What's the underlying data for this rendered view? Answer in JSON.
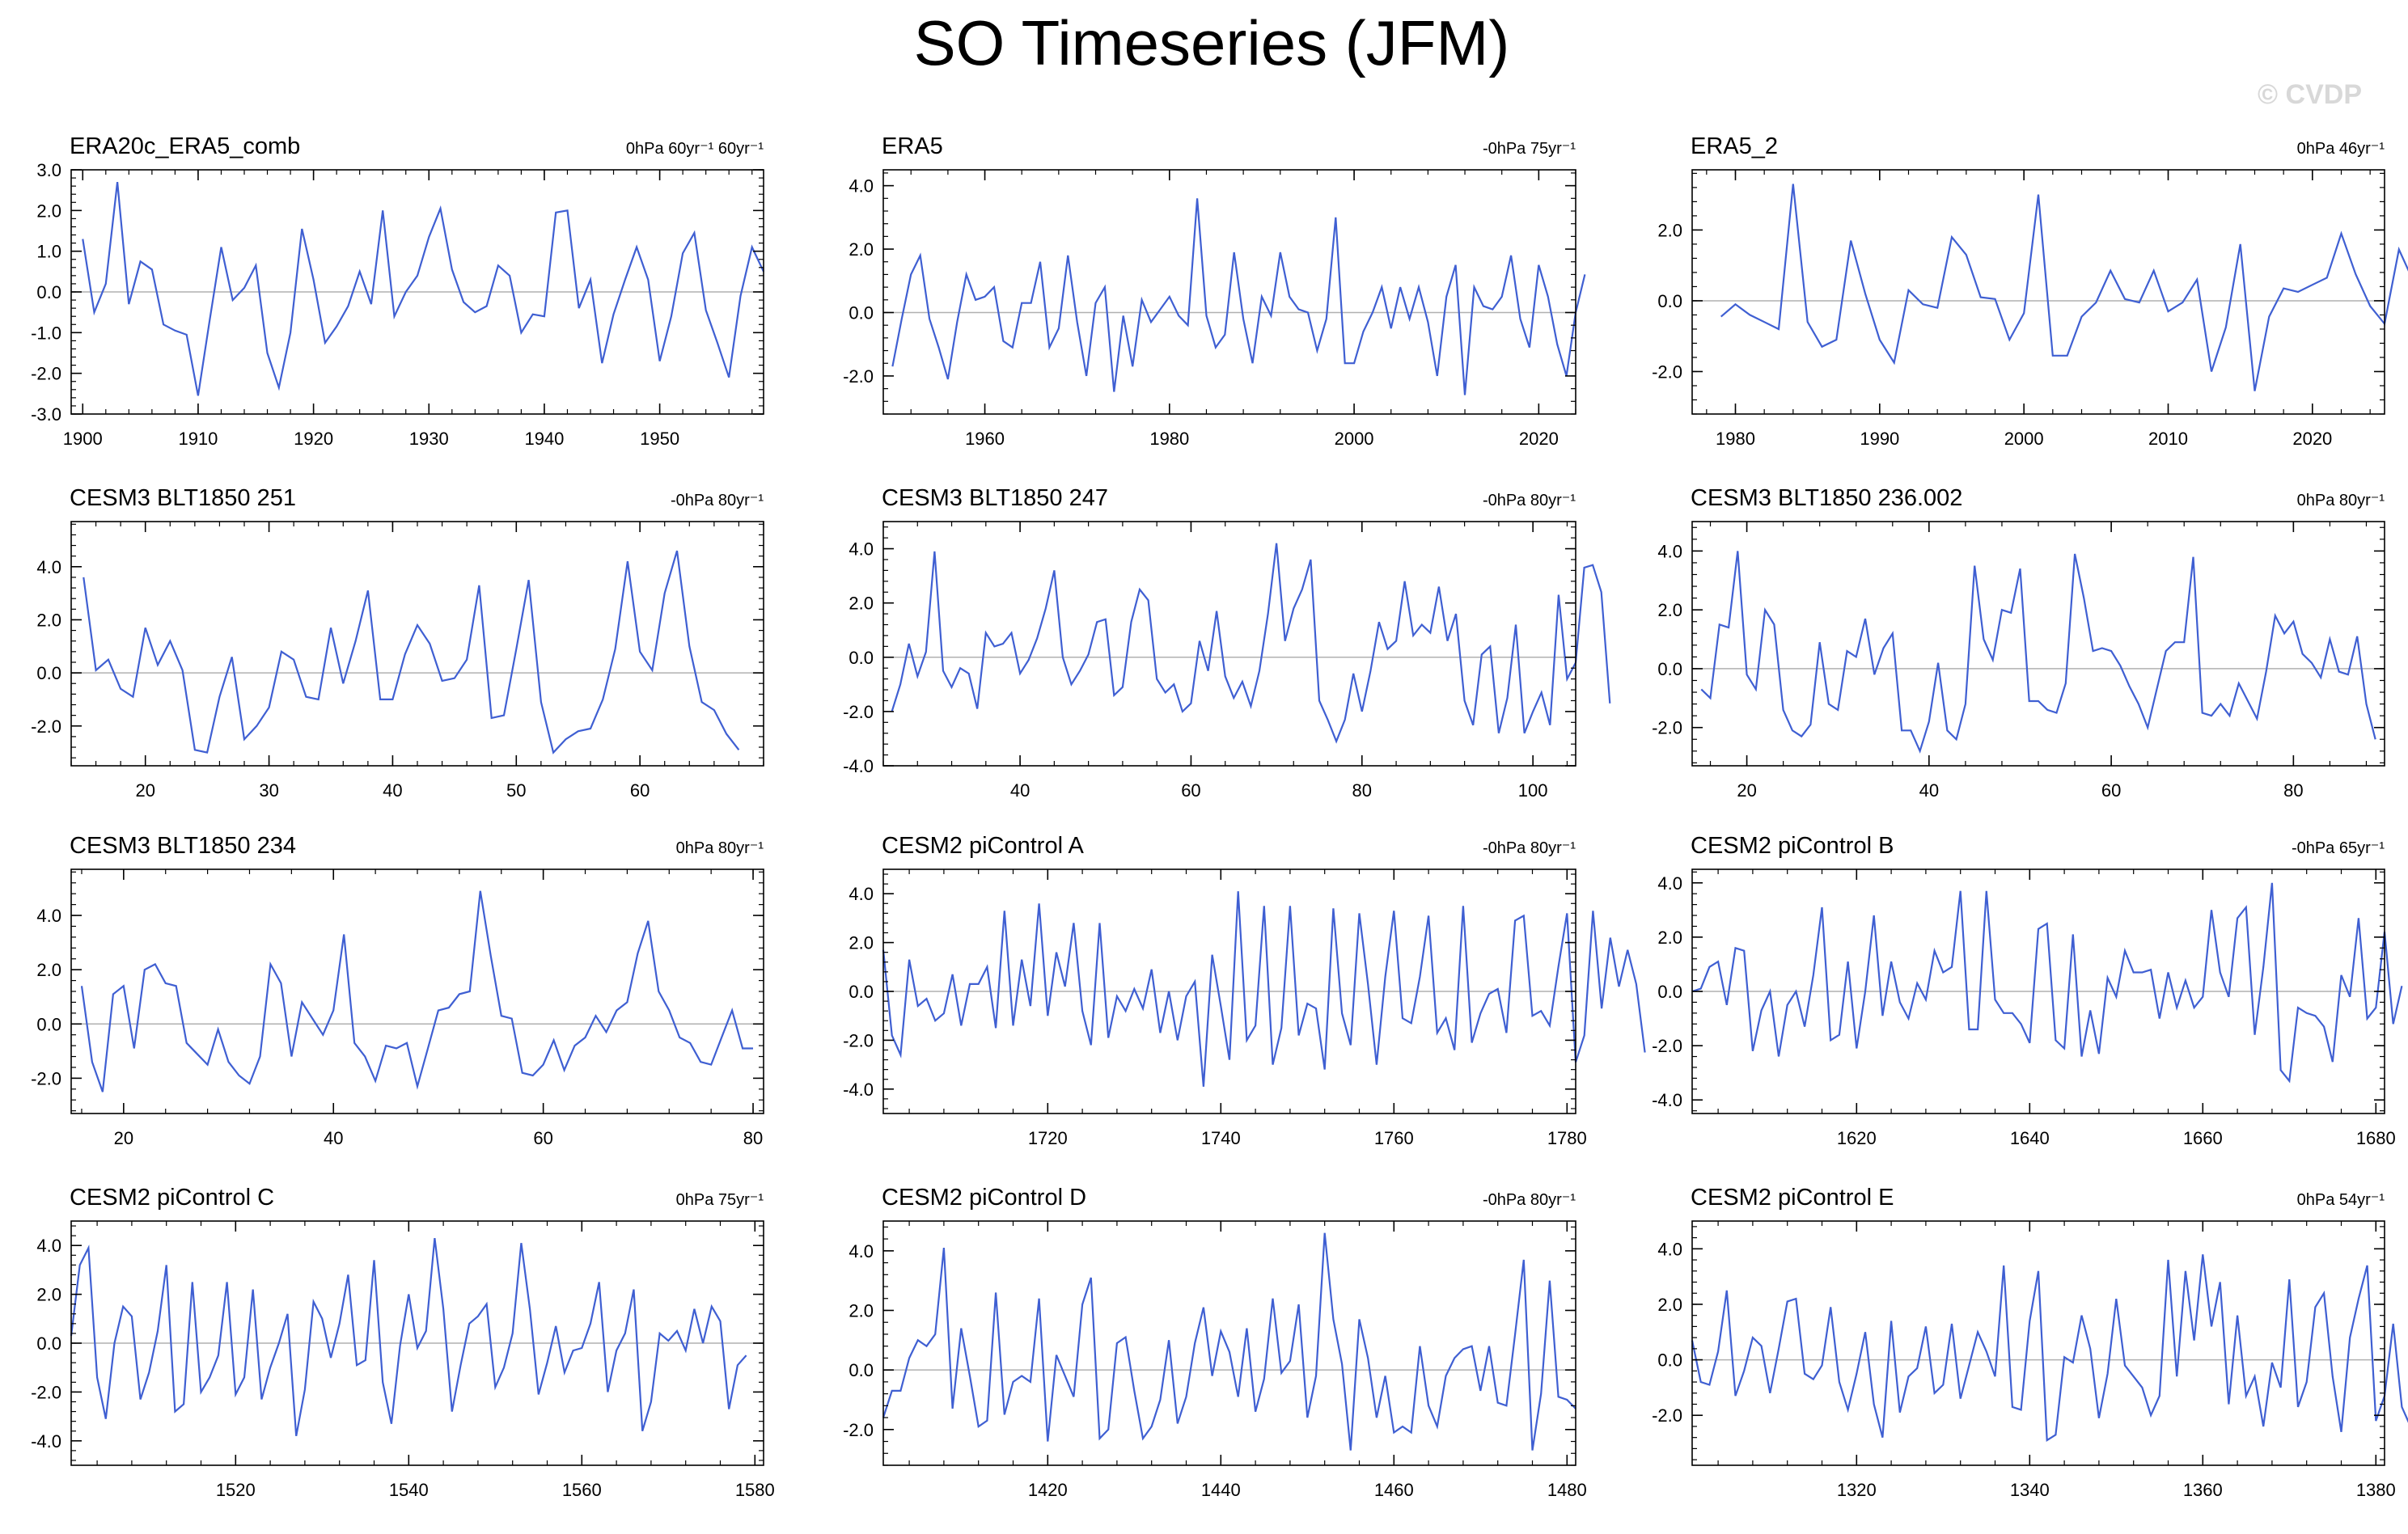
{
  "page": {
    "title": "SO Timeseries (JFM)",
    "watermark": "© CVDP"
  },
  "style": {
    "line_color": "#3f5fd2",
    "axis_color": "#000000",
    "zero_line_color": "#b0b0b0",
    "watermark_color": "#d8d8d8"
  },
  "chart_data": [
    {
      "type": "line",
      "title": "ERA20c_ERA5_comb",
      "trend_label": "0hPa 60yr⁻¹ 60yr⁻¹",
      "x_start": 1900,
      "xlim": [
        1899,
        1959
      ],
      "xticks": [
        1900,
        1910,
        1920,
        1930,
        1940,
        1950
      ],
      "ylim": [
        -3.0,
        3.0
      ],
      "yticks": [
        -3.0,
        -2.0,
        -1.0,
        0.0,
        1.0,
        2.0,
        3.0
      ],
      "grid": false,
      "zero_line": true,
      "values": [
        1.3,
        -0.5,
        0.2,
        2.7,
        -0.3,
        0.75,
        0.55,
        -0.8,
        -0.95,
        -1.05,
        -2.55,
        -0.7,
        1.1,
        -0.2,
        0.1,
        0.65,
        -1.5,
        -2.35,
        -1.0,
        1.55,
        0.3,
        -1.25,
        -0.85,
        -0.35,
        0.5,
        -0.3,
        2.0,
        -0.6,
        0.0,
        0.4,
        1.35,
        2.05,
        0.55,
        -0.25,
        -0.5,
        -0.35,
        0.65,
        0.4,
        -1.0,
        -0.55,
        -0.6,
        1.95,
        2.0,
        -0.4,
        0.3,
        -1.75,
        -0.55,
        0.3,
        1.1,
        0.3,
        -1.7,
        -0.6,
        0.95,
        1.45,
        -0.45,
        -1.25,
        -2.1,
        -0.1,
        1.1,
        0.5
      ]
    },
    {
      "type": "line",
      "title": "ERA5",
      "trend_label": "-0hPa 75yr⁻¹",
      "x_start": 1950,
      "xlim": [
        1949,
        2024
      ],
      "xticks": [
        1960,
        1980,
        2000,
        2020
      ],
      "ylim": [
        -3.2,
        4.5
      ],
      "yticks": [
        -2.0,
        0.0,
        2.0,
        4.0
      ],
      "grid": false,
      "zero_line": true,
      "values": [
        -1.7,
        -0.2,
        1.2,
        1.8,
        -0.2,
        -1.1,
        -2.1,
        -0.3,
        1.2,
        0.4,
        0.5,
        0.8,
        -0.9,
        -1.1,
        0.3,
        0.3,
        1.6,
        -1.1,
        -0.5,
        1.8,
        -0.3,
        -2.0,
        0.3,
        0.8,
        -2.5,
        -0.1,
        -1.7,
        0.4,
        -0.3,
        0.1,
        0.5,
        -0.1,
        -0.4,
        3.6,
        -0.1,
        -1.1,
        -0.7,
        1.9,
        -0.2,
        -1.6,
        0.5,
        -0.1,
        1.9,
        0.5,
        0.1,
        0.0,
        -1.2,
        -0.2,
        3.0,
        -1.6,
        -1.6,
        -0.6,
        0.0,
        0.8,
        -0.5,
        0.8,
        -0.2,
        0.8,
        -0.3,
        -2.0,
        0.5,
        1.5,
        -2.6,
        0.8,
        0.2,
        0.1,
        0.5,
        1.8,
        -0.2,
        -1.1,
        1.5,
        0.5,
        -1.0,
        -2.0,
        0.0,
        1.2
      ]
    },
    {
      "type": "line",
      "title": "ERA5_2",
      "trend_label": "0hPa 46yr⁻¹",
      "x_start": 1979,
      "xlim": [
        1977,
        2025
      ],
      "xticks": [
        1980,
        1990,
        2000,
        2010,
        2020
      ],
      "ylim": [
        -3.2,
        3.7
      ],
      "yticks": [
        -2.0,
        0.0,
        2.0
      ],
      "grid": false,
      "zero_line": true,
      "values": [
        -0.45,
        -0.1,
        -0.4,
        -0.6,
        -0.8,
        3.3,
        -0.6,
        -1.3,
        -1.1,
        1.7,
        0.2,
        -1.1,
        -1.75,
        0.3,
        -0.1,
        -0.2,
        1.8,
        1.3,
        0.1,
        0.05,
        -1.1,
        -0.35,
        3.0,
        -1.55,
        -1.55,
        -0.45,
        -0.05,
        0.85,
        0.05,
        -0.05,
        0.85,
        -0.3,
        -0.05,
        0.6,
        -2.0,
        -0.75,
        1.6,
        -2.55,
        -0.45,
        0.35,
        0.25,
        0.45,
        0.65,
        1.9,
        0.75,
        -0.15,
        -0.65,
        1.45,
        0.55,
        -0.3,
        -1.2,
        -2.1,
        -0.05,
        1.1
      ]
    },
    {
      "type": "line",
      "title": "CESM3 BLT1850 251",
      "trend_label": "-0hPa 80yr⁻¹",
      "x_start": 15,
      "xlim": [
        14,
        70
      ],
      "xticks": [
        20,
        30,
        40,
        50,
        60
      ],
      "ylim": [
        -3.5,
        5.7
      ],
      "yticks": [
        -2.0,
        0.0,
        2.0,
        4.0
      ],
      "grid": false,
      "zero_line": true,
      "values": [
        3.6,
        0.1,
        0.5,
        -0.6,
        -0.9,
        1.7,
        0.3,
        1.2,
        0.1,
        -2.9,
        -3.0,
        -0.9,
        0.6,
        -2.5,
        -2.0,
        -1.3,
        0.8,
        0.5,
        -0.9,
        -1.0,
        1.7,
        -0.4,
        1.2,
        3.1,
        -1.0,
        -1.0,
        0.7,
        1.8,
        1.1,
        -0.3,
        -0.2,
        0.5,
        3.3,
        -1.7,
        -1.6,
        0.9,
        3.5,
        -1.1,
        -3.0,
        -2.5,
        -2.2,
        -2.1,
        -1.0,
        0.9,
        4.2,
        0.8,
        0.1,
        3.0,
        4.6,
        1.0,
        -1.1,
        -1.4,
        -2.3,
        -2.9
      ]
    },
    {
      "type": "line",
      "title": "CESM3 BLT1850 247",
      "trend_label": "-0hPa 80yr⁻¹",
      "x_start": 25,
      "xlim": [
        24,
        105
      ],
      "xticks": [
        40,
        60,
        80,
        100
      ],
      "ylim": [
        -4.0,
        5.0
      ],
      "yticks": [
        -4.0,
        -2.0,
        0.0,
        2.0,
        4.0
      ],
      "grid": false,
      "zero_line": true,
      "values": [
        -2.0,
        -1.0,
        0.5,
        -0.7,
        0.2,
        3.9,
        -0.5,
        -1.1,
        -0.4,
        -0.6,
        -1.9,
        0.9,
        0.4,
        0.5,
        0.9,
        -0.6,
        -0.1,
        0.7,
        1.8,
        3.2,
        0.0,
        -1.0,
        -0.5,
        0.1,
        1.3,
        1.4,
        -1.4,
        -1.1,
        1.3,
        2.5,
        2.1,
        -0.8,
        -1.3,
        -1.0,
        -2.0,
        -1.7,
        0.6,
        -0.5,
        1.7,
        -0.7,
        -1.5,
        -0.9,
        -1.8,
        -0.5,
        1.6,
        4.2,
        0.6,
        1.8,
        2.5,
        3.6,
        -1.6,
        -2.3,
        -3.1,
        -2.3,
        -0.6,
        -2.0,
        -0.5,
        1.3,
        0.3,
        0.6,
        2.8,
        0.8,
        1.2,
        0.9,
        2.6,
        0.6,
        1.6,
        -1.6,
        -2.5,
        0.1,
        0.4,
        -2.8,
        -1.5,
        1.2,
        -2.8,
        -2.0,
        -1.3,
        -2.5,
        2.3,
        -0.8,
        -0.2,
        3.3,
        3.4,
        2.4,
        -1.7
      ]
    },
    {
      "type": "line",
      "title": "CESM3 BLT1850 236.002",
      "trend_label": "0hPa 80yr⁻¹",
      "x_start": 15,
      "xlim": [
        14,
        90
      ],
      "xticks": [
        20,
        40,
        60,
        80
      ],
      "ylim": [
        -3.3,
        5.0
      ],
      "yticks": [
        -2.0,
        0.0,
        2.0,
        4.0
      ],
      "grid": false,
      "zero_line": true,
      "values": [
        -0.7,
        -1.0,
        1.5,
        1.4,
        4.0,
        -0.2,
        -0.7,
        2.0,
        1.5,
        -1.4,
        -2.1,
        -2.3,
        -1.9,
        0.9,
        -1.2,
        -1.4,
        0.6,
        0.4,
        1.7,
        -0.2,
        0.7,
        1.2,
        -2.1,
        -2.1,
        -2.8,
        -1.8,
        0.2,
        -2.1,
        -2.4,
        -1.2,
        3.5,
        1.0,
        0.3,
        2.0,
        1.9,
        3.4,
        -1.1,
        -1.1,
        -1.4,
        -1.5,
        -0.5,
        3.9,
        2.4,
        0.6,
        0.7,
        0.6,
        0.1,
        -0.6,
        -1.2,
        -2.0,
        -0.7,
        0.6,
        0.9,
        0.9,
        3.8,
        -1.5,
        -1.6,
        -1.2,
        -1.6,
        -0.5,
        -1.1,
        -1.7,
        -0.1,
        1.8,
        1.2,
        1.6,
        0.5,
        0.2,
        -0.3,
        1.0,
        -0.1,
        -0.2,
        1.1,
        -1.2,
        -2.4
      ]
    },
    {
      "type": "line",
      "title": "CESM3 BLT1850 234",
      "trend_label": "0hPa 80yr⁻¹",
      "x_start": 16,
      "xlim": [
        15,
        81
      ],
      "xticks": [
        20,
        40,
        60,
        80
      ],
      "ylim": [
        -3.3,
        5.7
      ],
      "yticks": [
        -2.0,
        0.0,
        2.0,
        4.0
      ],
      "grid": false,
      "zero_line": true,
      "values": [
        1.4,
        -1.4,
        -2.5,
        1.1,
        1.4,
        -0.9,
        2.0,
        2.2,
        1.5,
        1.4,
        -0.7,
        -1.1,
        -1.5,
        -0.2,
        -1.4,
        -1.9,
        -2.2,
        -1.2,
        2.2,
        1.5,
        -1.2,
        0.8,
        0.2,
        -0.4,
        0.5,
        3.3,
        -0.7,
        -1.2,
        -2.1,
        -0.8,
        -0.9,
        -0.7,
        -2.3,
        -0.9,
        0.5,
        0.6,
        1.1,
        1.2,
        4.9,
        2.5,
        0.3,
        0.2,
        -1.8,
        -1.9,
        -1.5,
        -0.6,
        -1.7,
        -0.8,
        -0.5,
        0.3,
        -0.3,
        0.5,
        0.8,
        2.6,
        3.8,
        1.2,
        0.5,
        -0.5,
        -0.7,
        -1.4,
        -1.5,
        -0.5,
        0.5,
        -0.9,
        -0.9
      ]
    },
    {
      "type": "line",
      "title": "CESM2 piControl A",
      "trend_label": "-0hPa 80yr⁻¹",
      "x_start": 1701,
      "xlim": [
        1701,
        1781
      ],
      "xticks": [
        1720,
        1740,
        1760,
        1780
      ],
      "ylim": [
        -5.0,
        5.0
      ],
      "yticks": [
        -4.0,
        -2.0,
        0.0,
        2.0,
        4.0
      ],
      "grid": false,
      "zero_line": true,
      "values": [
        1.7,
        -1.8,
        -2.6,
        1.3,
        -0.6,
        -0.3,
        -1.2,
        -0.9,
        0.7,
        -1.4,
        0.3,
        0.3,
        1.0,
        -1.5,
        3.3,
        -1.4,
        1.3,
        -0.6,
        3.6,
        -1.0,
        1.6,
        0.2,
        2.8,
        -0.8,
        -2.2,
        2.8,
        -1.9,
        -0.2,
        -0.8,
        0.1,
        -0.7,
        0.9,
        -1.7,
        0.0,
        -2.0,
        -0.2,
        0.4,
        -3.9,
        1.5,
        -0.6,
        -2.8,
        4.1,
        -2.0,
        -1.4,
        3.5,
        -3.0,
        -1.5,
        3.5,
        -1.8,
        -0.5,
        -0.7,
        -3.2,
        3.4,
        -0.9,
        -2.2,
        3.2,
        0.3,
        -3.0,
        0.6,
        3.3,
        -1.1,
        -1.3,
        0.6,
        3.1,
        -1.7,
        -1.1,
        -2.4,
        3.5,
        -2.1,
        -0.9,
        -0.1,
        0.1,
        -1.7,
        2.9,
        3.1,
        -1.0,
        -0.8,
        -1.4,
        1.0,
        3.2,
        -2.9,
        -1.8,
        3.3,
        -0.7,
        2.2,
        0.2,
        1.7,
        0.3,
        -2.5
      ]
    },
    {
      "type": "line",
      "title": "CESM2 piControl B",
      "trend_label": "-0hPa 65yr⁻¹",
      "x_start": 1601,
      "xlim": [
        1601,
        1681
      ],
      "xticks": [
        1620,
        1640,
        1660,
        1680
      ],
      "ylim": [
        -4.5,
        4.5
      ],
      "yticks": [
        -4.0,
        -2.0,
        0.0,
        2.0,
        4.0
      ],
      "grid": false,
      "zero_line": true,
      "values": [
        0.0,
        0.1,
        0.9,
        1.1,
        -0.5,
        1.6,
        1.5,
        -2.2,
        -0.7,
        0.0,
        -2.4,
        -0.5,
        0.0,
        -1.3,
        0.6,
        3.1,
        -1.8,
        -1.6,
        1.1,
        -2.1,
        0.0,
        2.8,
        -0.9,
        1.1,
        -0.4,
        -1.0,
        0.3,
        -0.3,
        1.5,
        0.7,
        0.9,
        3.7,
        -1.4,
        -1.4,
        3.7,
        -0.3,
        -0.8,
        -0.8,
        -1.2,
        -1.9,
        2.3,
        2.5,
        -1.8,
        -2.1,
        2.1,
        -2.4,
        -0.7,
        -2.3,
        0.5,
        -0.2,
        1.5,
        0.7,
        0.7,
        0.8,
        -1.0,
        0.7,
        -0.6,
        0.4,
        -0.6,
        -0.2,
        3.0,
        0.7,
        -0.2,
        2.7,
        3.1,
        -1.6,
        0.9,
        4.0,
        -2.9,
        -3.3,
        -0.6,
        -0.8,
        -0.9,
        -1.3,
        -2.6,
        0.6,
        -0.2,
        2.7,
        -1.0,
        -0.6,
        2.2,
        -1.2,
        0.2
      ]
    },
    {
      "type": "line",
      "title": "CESM2 piControl C",
      "trend_label": "0hPa 75yr⁻¹",
      "x_start": 1501,
      "xlim": [
        1501,
        1581
      ],
      "xticks": [
        1520,
        1540,
        1560,
        1580
      ],
      "ylim": [
        -5.0,
        5.0
      ],
      "yticks": [
        -4.0,
        -2.0,
        0.0,
        2.0,
        4.0
      ],
      "grid": false,
      "zero_line": true,
      "values": [
        0.3,
        3.2,
        3.9,
        -1.4,
        -3.1,
        0.0,
        1.5,
        1.1,
        -2.3,
        -1.2,
        0.5,
        3.2,
        -2.8,
        -2.5,
        2.5,
        -2.0,
        -1.4,
        -0.5,
        2.5,
        -2.1,
        -1.4,
        2.2,
        -2.3,
        -1.0,
        0.0,
        1.2,
        -3.8,
        -1.9,
        1.7,
        1.0,
        -0.6,
        0.8,
        2.8,
        -0.9,
        -0.7,
        3.4,
        -1.6,
        -3.3,
        -0.1,
        2.0,
        -0.2,
        0.5,
        4.3,
        1.4,
        -2.8,
        -0.9,
        0.8,
        1.1,
        1.6,
        -1.8,
        -1.0,
        0.4,
        4.1,
        1.4,
        -2.1,
        -0.8,
        0.7,
        -1.2,
        -0.3,
        -0.2,
        0.8,
        2.5,
        -2.0,
        -0.3,
        0.4,
        2.2,
        -3.6,
        -2.4,
        0.4,
        0.1,
        0.5,
        -0.3,
        1.4,
        0.0,
        1.5,
        0.9,
        -2.7,
        -0.9,
        -0.5
      ]
    },
    {
      "type": "line",
      "title": "CESM2 piControl D",
      "trend_label": "-0hPa 80yr⁻¹",
      "x_start": 1401,
      "xlim": [
        1401,
        1481
      ],
      "xticks": [
        1420,
        1440,
        1460,
        1480
      ],
      "ylim": [
        -3.2,
        5.0
      ],
      "yticks": [
        -2.0,
        0.0,
        2.0,
        4.0
      ],
      "grid": false,
      "zero_line": true,
      "values": [
        -1.6,
        -0.7,
        -0.7,
        0.4,
        1.0,
        0.8,
        1.2,
        4.1,
        -1.3,
        1.4,
        -0.2,
        -1.9,
        -1.7,
        2.6,
        -1.5,
        -0.4,
        -0.2,
        -0.4,
        2.4,
        -2.4,
        0.5,
        -0.2,
        -0.9,
        2.2,
        3.1,
        -2.3,
        -2.0,
        0.9,
        1.1,
        -0.7,
        -2.3,
        -1.9,
        -1.0,
        1.0,
        -1.8,
        -0.9,
        0.9,
        2.1,
        -0.2,
        1.3,
        0.6,
        -0.9,
        1.4,
        -1.4,
        -0.3,
        2.4,
        -0.1,
        0.3,
        2.2,
        -1.6,
        -0.2,
        4.6,
        1.7,
        0.2,
        -2.7,
        1.7,
        0.4,
        -1.6,
        -0.2,
        -2.1,
        -1.9,
        -2.1,
        0.8,
        -1.2,
        -1.9,
        -0.2,
        0.4,
        0.7,
        0.8,
        -0.7,
        0.8,
        -1.1,
        -1.2,
        1.2,
        3.7,
        -2.7,
        -0.8,
        3.0,
        -0.9,
        -1.0,
        -1.3
      ]
    },
    {
      "type": "line",
      "title": "CESM2 piControl E",
      "trend_label": "0hPa 54yr⁻¹",
      "x_start": 1301,
      "xlim": [
        1301,
        1381
      ],
      "xticks": [
        1320,
        1340,
        1360,
        1380
      ],
      "ylim": [
        -3.8,
        5.0
      ],
      "yticks": [
        -2.0,
        0.0,
        2.0,
        4.0
      ],
      "grid": false,
      "zero_line": true,
      "values": [
        0.7,
        -0.8,
        -0.9,
        0.3,
        2.5,
        -1.3,
        -0.4,
        0.8,
        0.5,
        -1.2,
        0.4,
        2.1,
        2.2,
        -0.5,
        -0.7,
        -0.2,
        1.9,
        -0.8,
        -1.8,
        -0.5,
        1.0,
        -1.6,
        -2.8,
        1.4,
        -1.9,
        -0.6,
        -0.3,
        1.2,
        -1.2,
        -0.9,
        1.3,
        -1.4,
        -0.2,
        1.0,
        0.3,
        -0.6,
        3.4,
        -1.7,
        -1.8,
        1.4,
        3.2,
        -2.9,
        -2.7,
        0.1,
        -0.1,
        1.6,
        0.4,
        -2.1,
        -0.5,
        2.2,
        -0.2,
        -0.6,
        -1.0,
        -2.0,
        -1.3,
        3.6,
        -0.6,
        3.2,
        0.7,
        3.8,
        1.2,
        2.8,
        -1.6,
        1.6,
        -1.3,
        -0.6,
        -2.4,
        -0.1,
        -1.0,
        2.9,
        -1.7,
        -0.8,
        1.9,
        2.4,
        -0.6,
        -2.6,
        0.8,
        2.2,
        3.4,
        -2.2,
        -1.3,
        1.3,
        -1.7,
        -2.4,
        0.5,
        1.1,
        -2.6,
        -0.3
      ]
    }
  ]
}
